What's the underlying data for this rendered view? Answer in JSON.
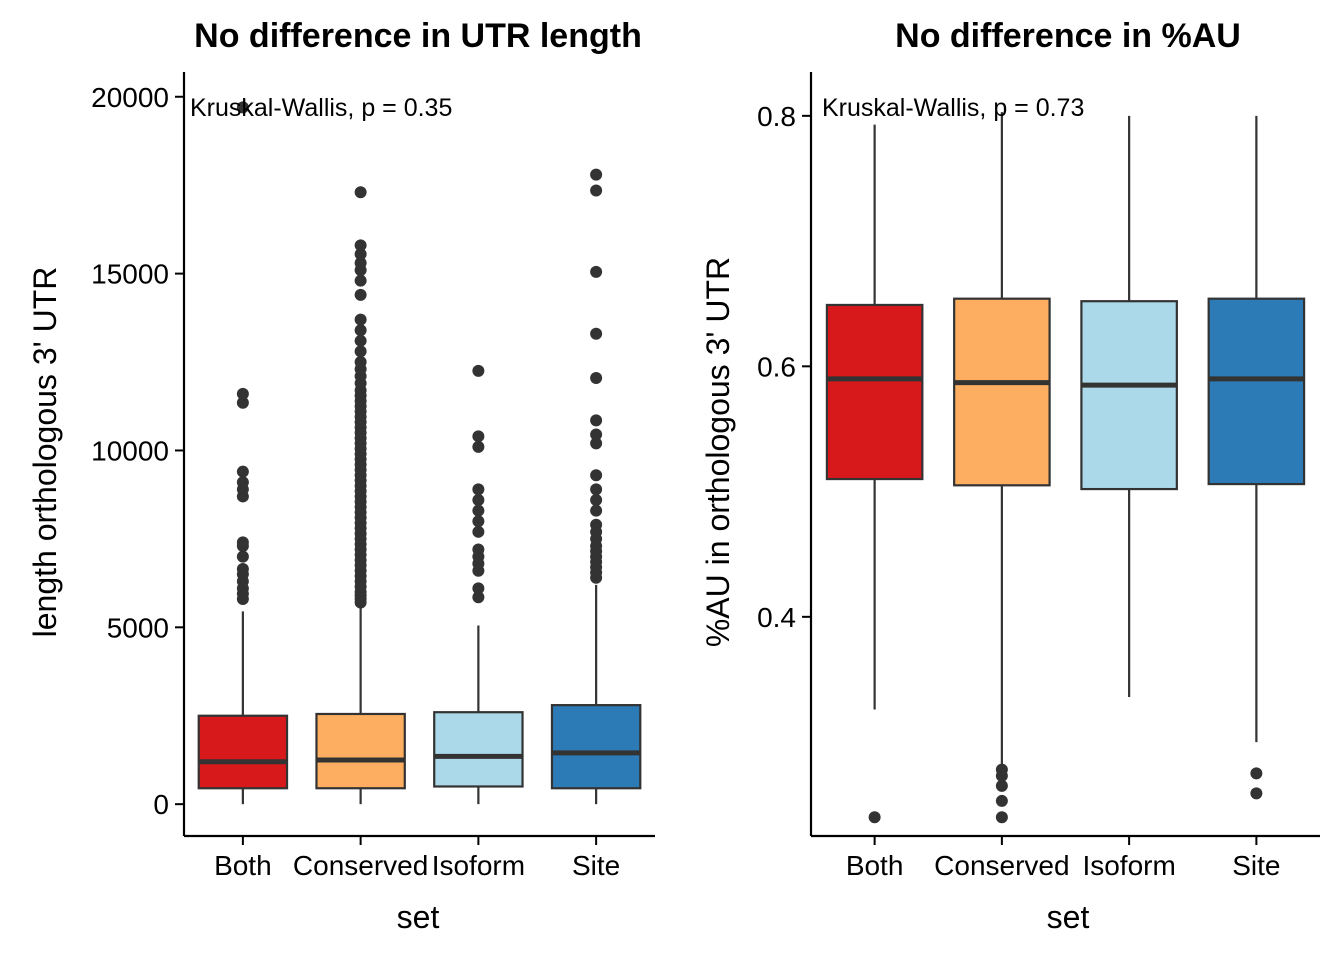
{
  "chart_data": [
    {
      "type": "boxplot",
      "title": "No difference in UTR length",
      "xlabel": "set",
      "ylabel": "length orthologous 3' UTR",
      "ylim": [
        -900,
        20700
      ],
      "yticks": [
        0,
        5000,
        10000,
        15000,
        20000
      ],
      "categories": [
        "Both",
        "Conserved",
        "Isoform",
        "Site"
      ],
      "colors": [
        "#d7191c",
        "#fdae61",
        "#abd9e9",
        "#2c7bb6"
      ],
      "annotation": "Kruskal-Wallis, p = 0.35",
      "legend": "none",
      "grid": false,
      "series": [
        {
          "category": "Both",
          "min": 0,
          "q1": 450,
          "median": 1200,
          "q3": 2500,
          "max": 5450,
          "outliers": [
            5800,
            5950,
            6100,
            6300,
            6500,
            6650,
            7000,
            7300,
            7400,
            8700,
            8900,
            9100,
            9400,
            11350,
            11600,
            19700
          ]
        },
        {
          "category": "Conserved",
          "min": 0,
          "q1": 450,
          "median": 1250,
          "q3": 2550,
          "max": 5600,
          "outliers": [
            5700,
            5800,
            5900,
            6000,
            6150,
            6300,
            6450,
            6600,
            6750,
            6900,
            7050,
            7200,
            7350,
            7500,
            7650,
            7800,
            7950,
            8100,
            8250,
            8400,
            8550,
            8700,
            8850,
            9000,
            9150,
            9300,
            9450,
            9600,
            9750,
            9900,
            10050,
            10200,
            10350,
            10500,
            10650,
            10800,
            10950,
            11100,
            11250,
            11400,
            11550,
            11700,
            11900,
            12100,
            12300,
            12500,
            12800,
            13100,
            13400,
            13700,
            14400,
            14800,
            15100,
            15300,
            15550,
            15800,
            17300
          ]
        },
        {
          "category": "Isoform",
          "min": 0,
          "q1": 500,
          "median": 1350,
          "q3": 2600,
          "max": 5050,
          "outliers": [
            5850,
            6100,
            6600,
            6800,
            7000,
            7200,
            7700,
            8000,
            8300,
            8600,
            8900,
            10100,
            10400,
            12250
          ]
        },
        {
          "category": "Site",
          "min": 0,
          "q1": 450,
          "median": 1450,
          "q3": 2800,
          "max": 6200,
          "outliers": [
            6400,
            6550,
            6700,
            6850,
            7000,
            7150,
            7300,
            7500,
            7700,
            7900,
            8300,
            8600,
            8900,
            9300,
            10200,
            10450,
            10850,
            12050,
            13300,
            15050,
            17350,
            17800
          ]
        }
      ]
    },
    {
      "type": "boxplot",
      "title": "No difference in %AU",
      "xlabel": "set",
      "ylabel": "%AU in orthologous 3' UTR",
      "ylim": [
        0.225,
        0.835
      ],
      "yticks": [
        0.4,
        0.6,
        0.8
      ],
      "ytick_labels": [
        "0.4",
        "0.6",
        "0.8"
      ],
      "categories": [
        "Both",
        "Conserved",
        "Isoform",
        "Site"
      ],
      "colors": [
        "#d7191c",
        "#fdae61",
        "#abd9e9",
        "#2c7bb6"
      ],
      "annotation": "Kruskal-Wallis, p = 0.73",
      "legend": "none",
      "grid": false,
      "series": [
        {
          "category": "Both",
          "min": 0.326,
          "q1": 0.51,
          "median": 0.59,
          "q3": 0.649,
          "max": 0.793,
          "outliers": [
            0.24
          ]
        },
        {
          "category": "Conserved",
          "min": 0.28,
          "q1": 0.505,
          "median": 0.587,
          "q3": 0.654,
          "max": 0.803,
          "outliers": [
            0.24,
            0.253,
            0.265,
            0.273,
            0.278
          ]
        },
        {
          "category": "Isoform",
          "min": 0.336,
          "q1": 0.502,
          "median": 0.585,
          "q3": 0.652,
          "max": 0.8,
          "outliers": []
        },
        {
          "category": "Site",
          "min": 0.3,
          "q1": 0.506,
          "median": 0.59,
          "q3": 0.654,
          "max": 0.8,
          "outliers": [
            0.259,
            0.275
          ]
        }
      ]
    }
  ]
}
